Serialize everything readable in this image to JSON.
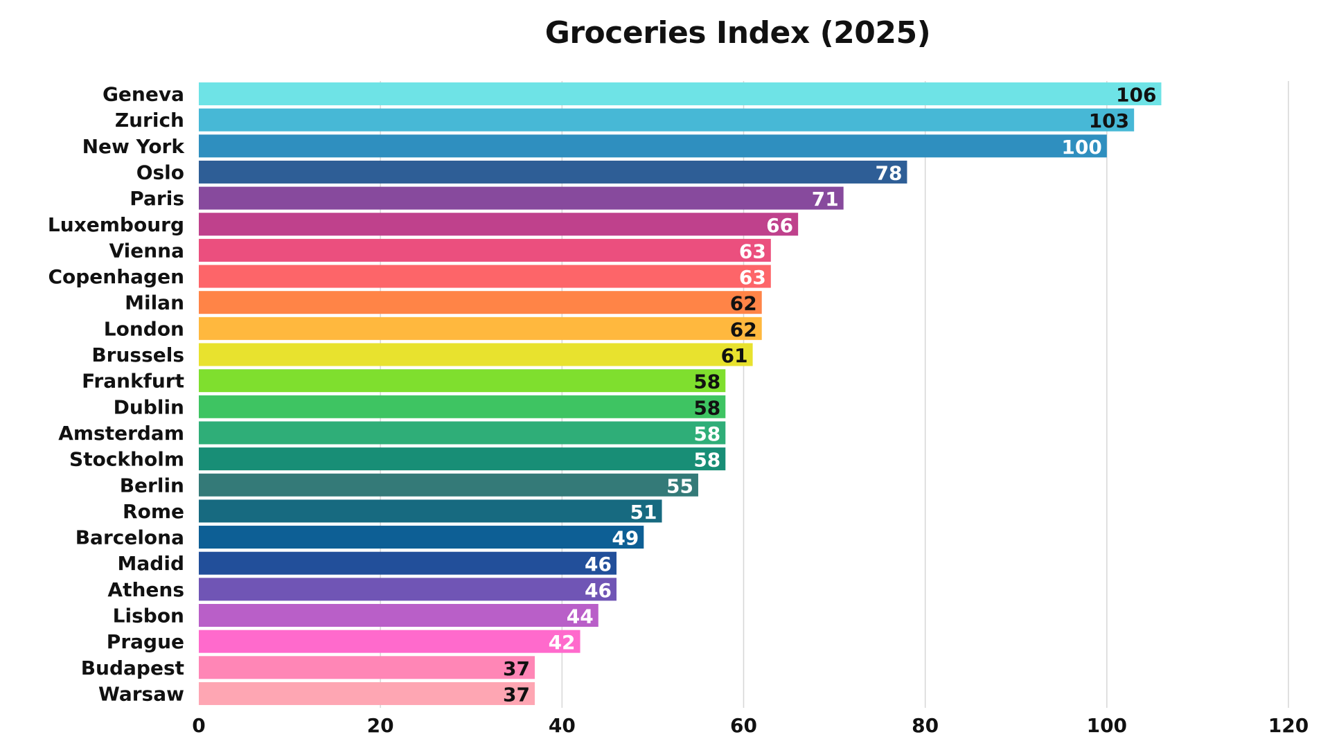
{
  "chart_data": {
    "type": "bar",
    "orientation": "horizontal",
    "title": "Groceries Index (2025)",
    "categories": [
      "Geneva",
      "Zurich",
      "New York",
      "Oslo",
      "Paris",
      "Luxembourg",
      "Vienna",
      "Copenhagen",
      "Milan",
      "London",
      "Brussels",
      "Frankfurt",
      "Dublin",
      "Amsterdam",
      "Stockholm",
      "Berlin",
      "Rome",
      "Barcelona",
      "Madid",
      "Athens",
      "Lisbon",
      "Prague",
      "Budapest",
      "Warsaw"
    ],
    "values": [
      106,
      103,
      100,
      78,
      71,
      66,
      63,
      63,
      62,
      62,
      61,
      58,
      58,
      58,
      58,
      55,
      51,
      49,
      46,
      46,
      44,
      42,
      37,
      37
    ],
    "value_labels": [
      "106",
      "103",
      "100",
      "78",
      "71",
      "66",
      "63",
      "63",
      "62",
      "62",
      "61",
      "58",
      "58",
      "58",
      "58",
      "55",
      "51",
      "49",
      "46",
      "46",
      "44",
      "42",
      "37",
      "37"
    ],
    "colors": [
      "#6ee3e6",
      "#47b8d6",
      "#2f8fbf",
      "#2e5e96",
      "#874a9d",
      "#bf418c",
      "#eb4f7e",
      "#fd6569",
      "#ff8447",
      "#ffb83e",
      "#e8e22e",
      "#7fdf2e",
      "#3ec462",
      "#2fae78",
      "#188e76",
      "#347a78",
      "#176a80",
      "#0d5f95",
      "#224f9a",
      "#7055b5",
      "#b95fc8",
      "#ff6acc",
      "#ff86b6",
      "#fea6b3"
    ],
    "label_colors": [
      "#111111",
      "#111111",
      "#ffffff",
      "#ffffff",
      "#ffffff",
      "#ffffff",
      "#ffffff",
      "#ffffff",
      "#111111",
      "#111111",
      "#111111",
      "#111111",
      "#111111",
      "#ffffff",
      "#ffffff",
      "#ffffff",
      "#ffffff",
      "#ffffff",
      "#ffffff",
      "#ffffff",
      "#ffffff",
      "#ffffff",
      "#111111",
      "#111111"
    ],
    "xlim": [
      0,
      120
    ],
    "xticks": [
      0,
      20,
      40,
      60,
      80,
      100,
      120
    ],
    "xtick_labels": [
      "0",
      "20",
      "40",
      "60",
      "80",
      "100",
      "120"
    ],
    "xlabel": "",
    "ylabel": "",
    "grid": "vertical"
  }
}
